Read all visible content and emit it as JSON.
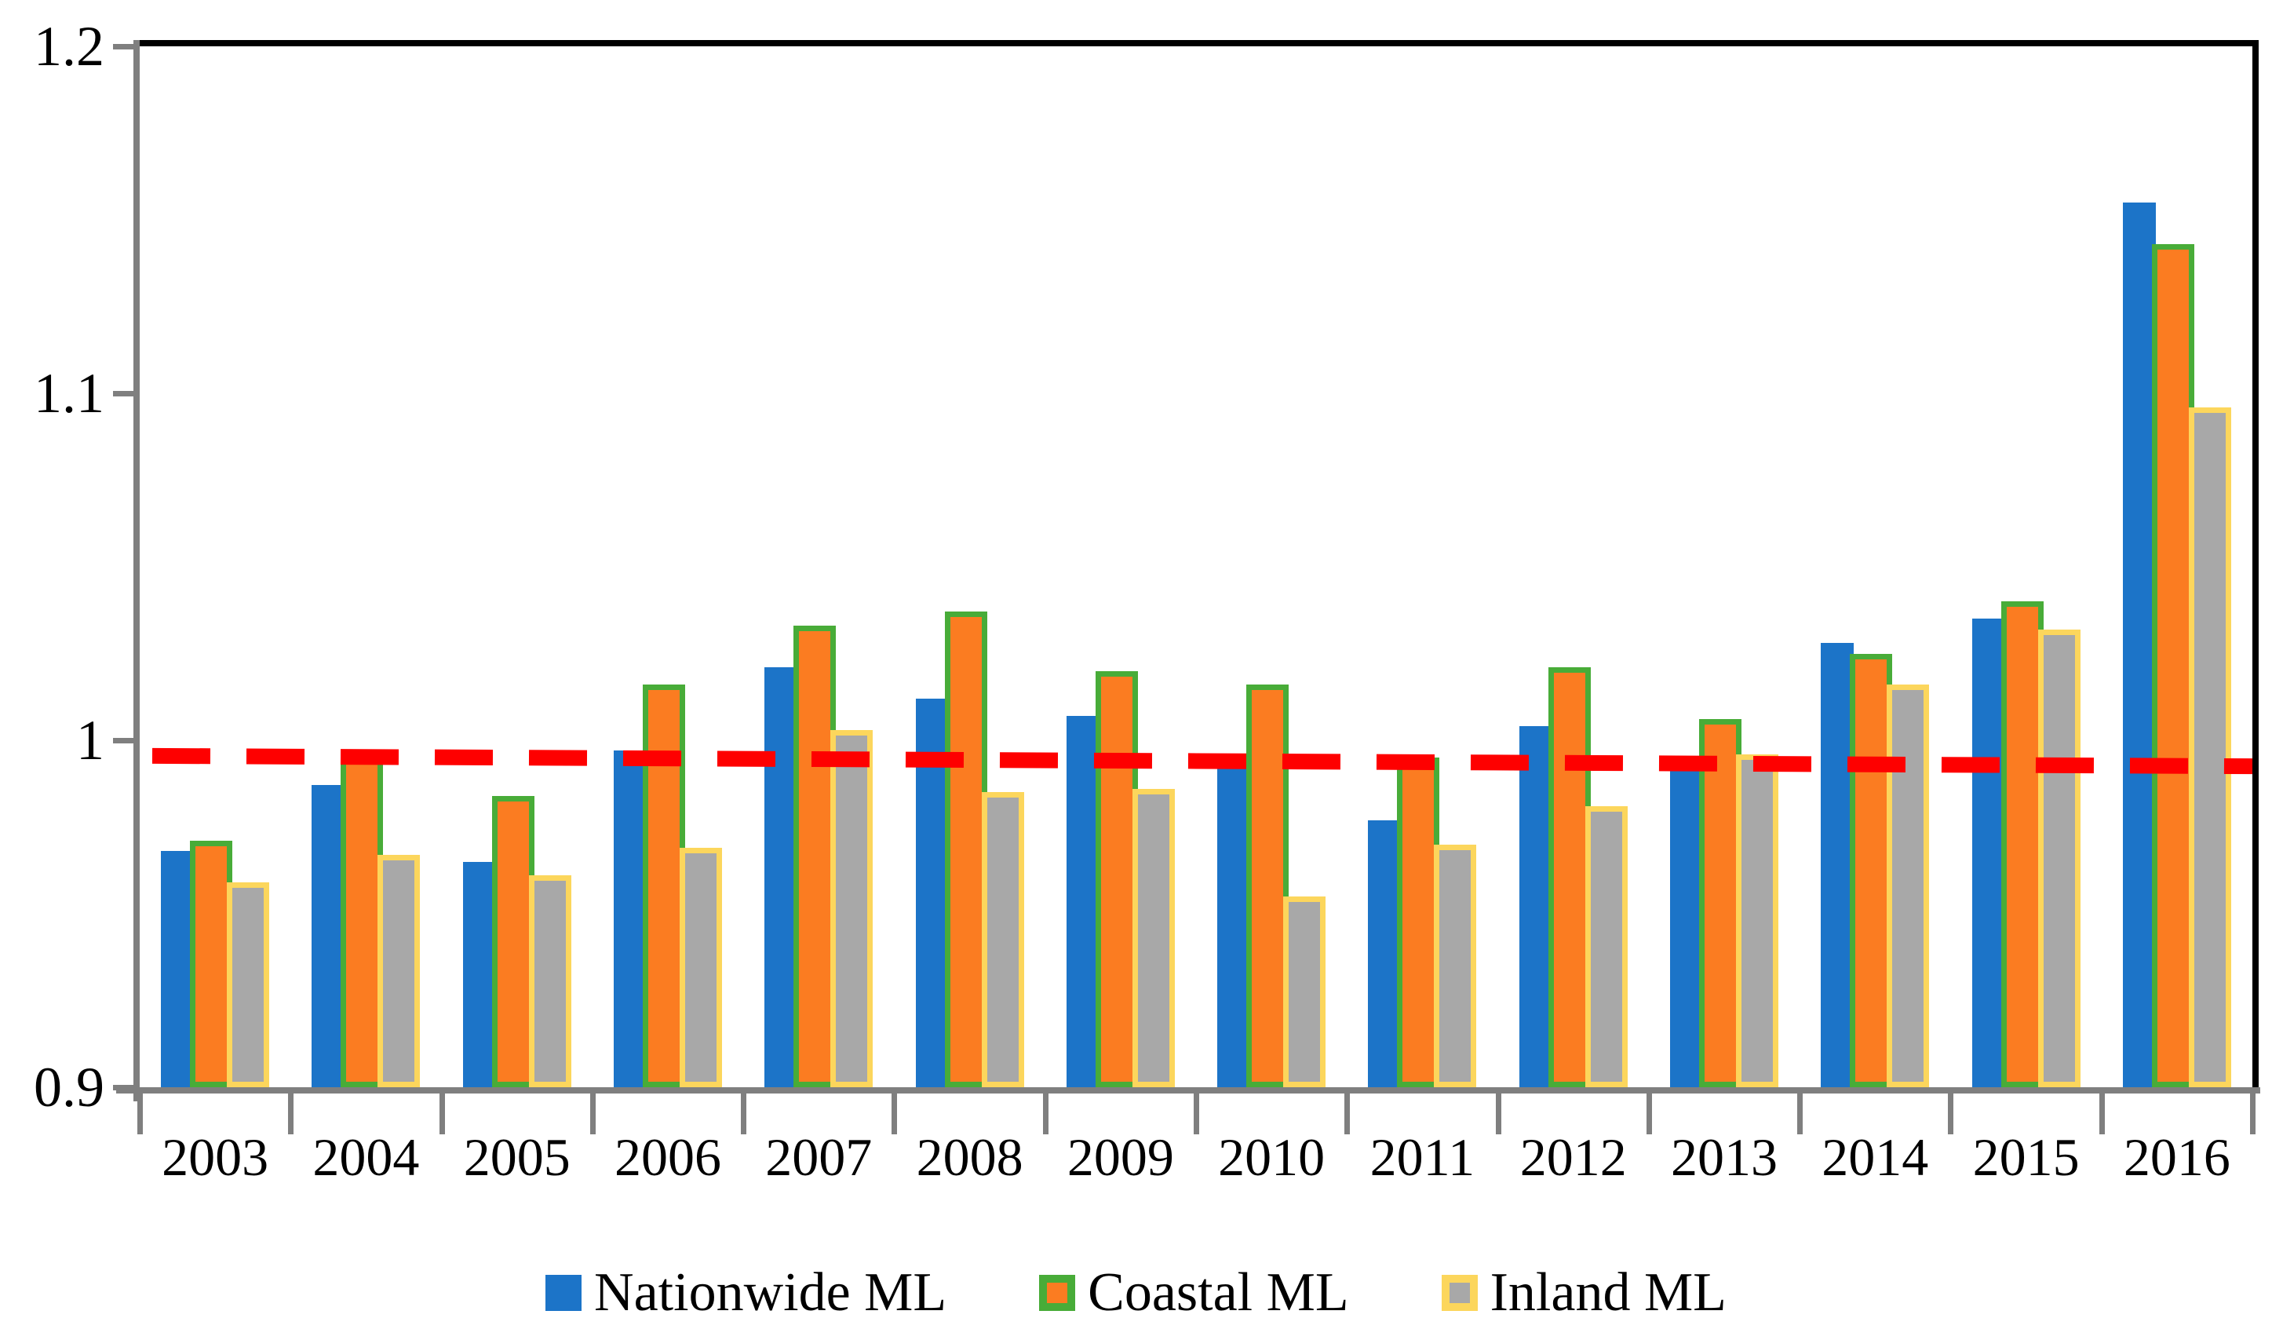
{
  "chart_data": {
    "type": "bar",
    "title": "",
    "categories": [
      "2003",
      "2004",
      "2005",
      "2006",
      "2007",
      "2008",
      "2009",
      "2010",
      "2011",
      "2012",
      "2013",
      "2014",
      "2015",
      "2016"
    ],
    "series": [
      {
        "name": "Nationwide ML",
        "color": "#1c74c8",
        "values": [
          0.968,
          0.987,
          0.965,
          0.997,
          1.021,
          1.012,
          1.007,
          0.994,
          0.977,
          1.004,
          0.995,
          1.028,
          1.035,
          1.155
        ]
      },
      {
        "name": "Coastal ML",
        "color": "#fb7c21",
        "border_color": "#48ac38",
        "values": [
          0.971,
          0.996,
          0.984,
          1.016,
          1.033,
          1.037,
          1.02,
          1.016,
          0.995,
          1.021,
          1.006,
          1.025,
          1.04,
          1.143
        ]
      },
      {
        "name": "Inland ML",
        "color": "#a8a8a8",
        "border_color": "#fcd65c",
        "values": [
          0.959,
          0.967,
          0.961,
          0.969,
          1.003,
          0.985,
          0.986,
          0.955,
          0.97,
          0.981,
          0.996,
          1.016,
          1.032,
          1.096
        ]
      }
    ],
    "trendline": {
      "color": "#fe0000",
      "style": "dashed",
      "start_value": 0.9955,
      "end_value": 0.9925
    },
    "ylim": [
      0.9,
      1.2
    ],
    "yticks": [
      {
        "label": "1.2",
        "value": 1.2
      },
      {
        "label": "1.1",
        "value": 1.1
      },
      {
        "label": "1",
        "value": 1.0
      },
      {
        "label": "0.9",
        "value": 0.9
      }
    ],
    "xlabel": "",
    "ylabel": "",
    "grid": false,
    "legend_position": "bottom",
    "axis_color": "#7f7f7f",
    "frame_color": "#000000"
  },
  "legend": {
    "items": [
      {
        "label": "Nationwide ML"
      },
      {
        "label": "Coastal ML"
      },
      {
        "label": "Inland ML"
      }
    ]
  }
}
